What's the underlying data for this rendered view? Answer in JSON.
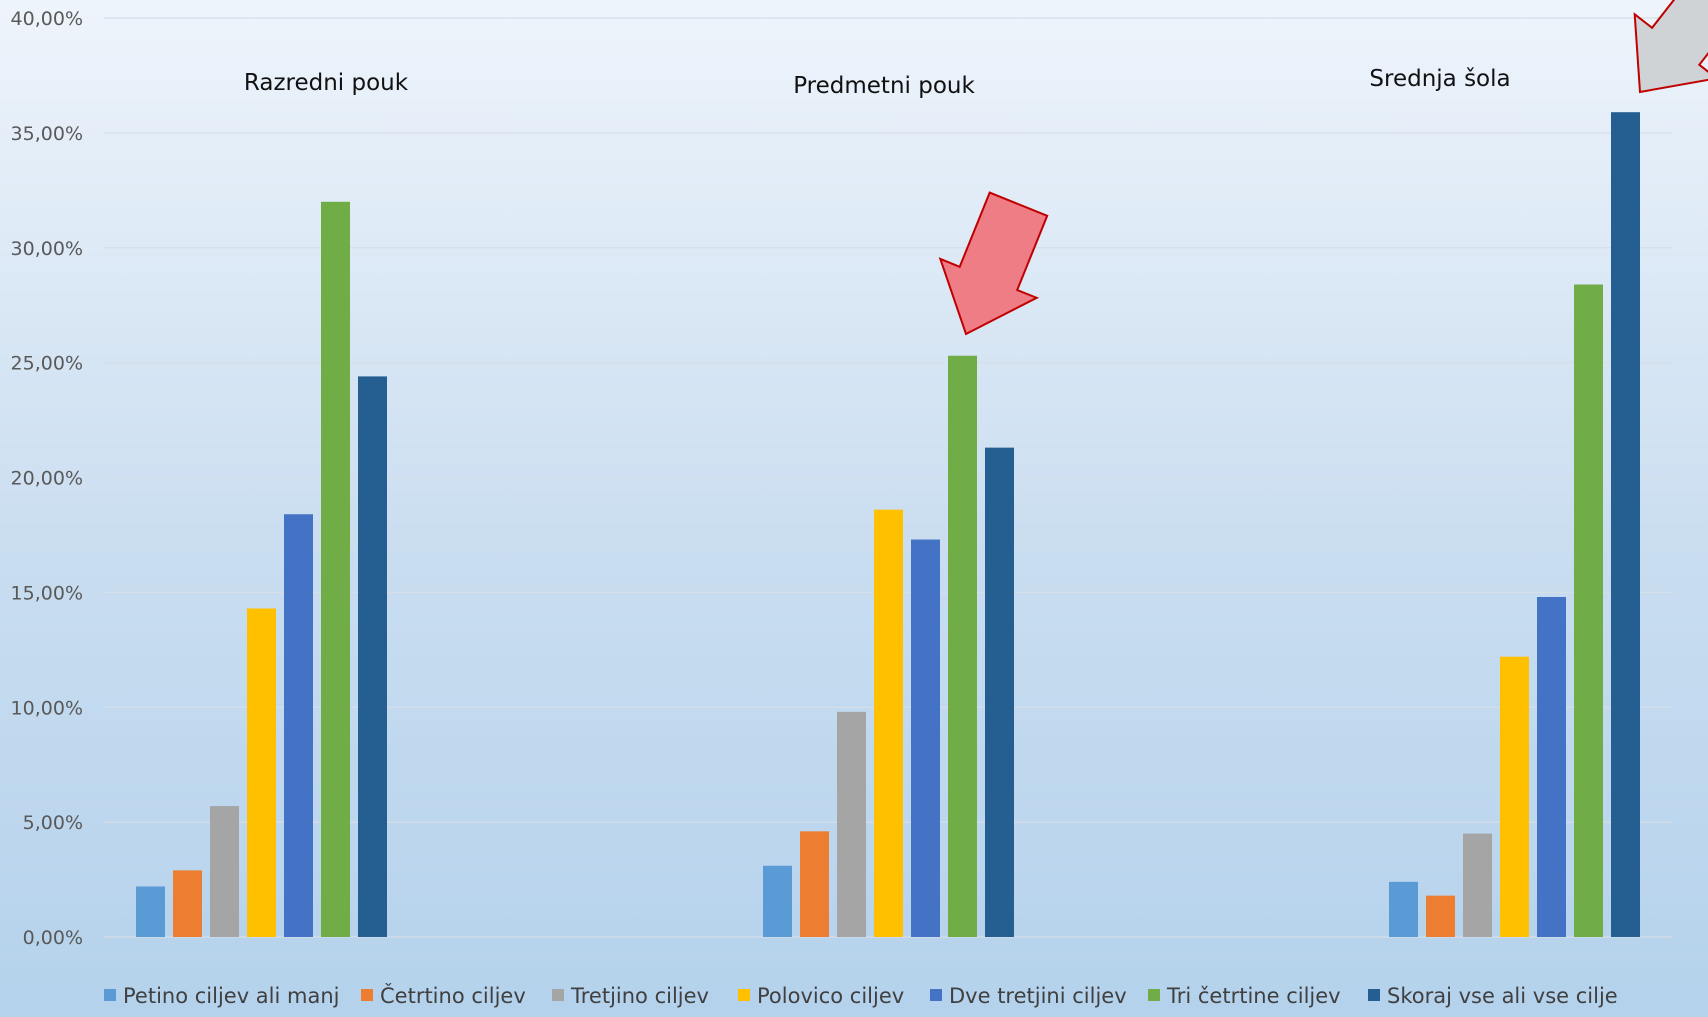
{
  "chart_data": {
    "type": "bar",
    "categories": [
      "Razredni pouk",
      "Predmetni pouk",
      "Srednja šola"
    ],
    "series": [
      {
        "name": "Petino ciljev ali manj",
        "color": "#5b9bd5",
        "values": [
          2.2,
          3.1,
          2.4
        ]
      },
      {
        "name": "Četrtino ciljev",
        "color": "#ed7d31",
        "values": [
          2.9,
          4.6,
          1.8
        ]
      },
      {
        "name": "Tretjino ciljev",
        "color": "#a5a5a5",
        "values": [
          5.7,
          9.8,
          4.5
        ]
      },
      {
        "name": "Polovico ciljev",
        "color": "#ffc000",
        "values": [
          14.3,
          18.6,
          12.2
        ]
      },
      {
        "name": "Dve tretjini ciljev",
        "color": "#4472c4",
        "values": [
          18.4,
          17.3,
          14.8
        ]
      },
      {
        "name": "Tri četrtine ciljev",
        "color": "#70ad47",
        "values": [
          32.0,
          25.3,
          28.4
        ]
      },
      {
        "name": "Skoraj vse ali vse cilje",
        "color": "#255e91",
        "values": [
          24.4,
          21.3,
          35.9
        ]
      }
    ],
    "yticks": [
      "0,00%",
      "5,00%",
      "10,00%",
      "15,00%",
      "20,00%",
      "25,00%",
      "30,00%",
      "35,00%",
      "40,00%"
    ],
    "ylim": [
      0,
      40
    ],
    "grid": true,
    "legend_position": "bottom",
    "annotations": [
      {
        "type": "arrow",
        "color": "#ee7d86",
        "stroke": "#c00000",
        "points_to": {
          "category": "Predmetni pouk",
          "series": "Tri četrtine ciljev"
        }
      },
      {
        "type": "arrow",
        "color": "#d0d3d6",
        "stroke": "#c00000",
        "points_to": {
          "category": "Srednja šola",
          "series": "Skoraj vse ali vse cilje"
        }
      }
    ]
  }
}
